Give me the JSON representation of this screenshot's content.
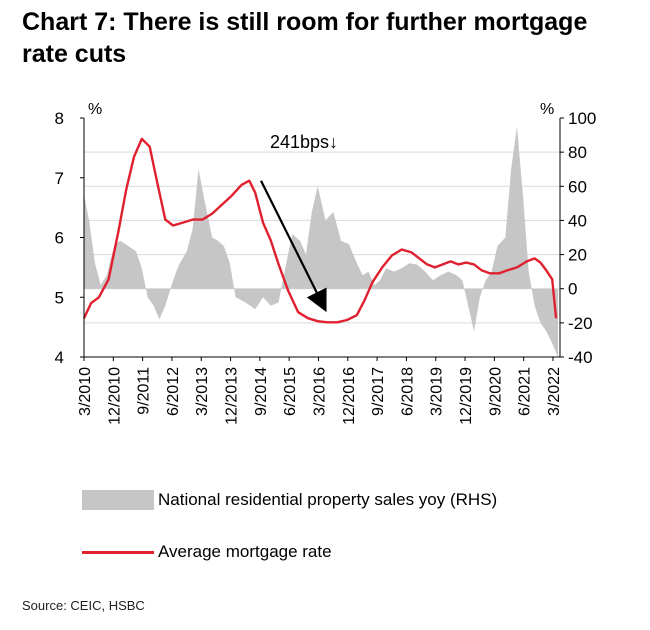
{
  "title": "Chart 7: There is still room for further mortgage rate cuts",
  "source": "Source: CEIC, HSBC",
  "chart_data": {
    "type": "line",
    "x_tick_labels": [
      "3/2010",
      "12/2010",
      "9/2011",
      "6/2012",
      "3/2013",
      "12/2013",
      "9/2014",
      "6/2015",
      "3/2016",
      "12/2016",
      "9/2017",
      "6/2018",
      "3/2019",
      "12/2019",
      "9/2020",
      "6/2021",
      "3/2022"
    ],
    "left_axis": {
      "unit_label": "%",
      "ylim": [
        4,
        8
      ],
      "ticks": [
        "4",
        "5",
        "6",
        "7",
        "8"
      ]
    },
    "right_axis": {
      "unit_label": "%",
      "ylim": [
        -40,
        100
      ],
      "ticks": [
        "-40",
        "-20",
        "0",
        "20",
        "40",
        "60",
        "80",
        "100"
      ]
    },
    "annotation": {
      "text": "241bps↓",
      "arrow_from_date": 2014.7,
      "arrow_from_value": 6.95,
      "arrow_to_date": 2016.3,
      "arrow_to_value": 4.85
    },
    "grid": true,
    "series": [
      {
        "name": "National residential property sales yoy (RHS)",
        "kind": "area",
        "axis": "right",
        "color": "#c6c6c6",
        "points": [
          [
            2010.17,
            55
          ],
          [
            2010.3,
            40
          ],
          [
            2010.45,
            15
          ],
          [
            2010.6,
            2
          ],
          [
            2010.75,
            8
          ],
          [
            2010.95,
            26
          ],
          [
            2011.1,
            28
          ],
          [
            2011.3,
            25
          ],
          [
            2011.5,
            22
          ],
          [
            2011.65,
            12
          ],
          [
            2011.8,
            -5
          ],
          [
            2011.95,
            -10
          ],
          [
            2012.1,
            -18
          ],
          [
            2012.25,
            -10
          ],
          [
            2012.45,
            5
          ],
          [
            2012.6,
            14
          ],
          [
            2012.8,
            22
          ],
          [
            2012.95,
            35
          ],
          [
            2013.1,
            70
          ],
          [
            2013.25,
            52
          ],
          [
            2013.45,
            30
          ],
          [
            2013.6,
            28
          ],
          [
            2013.75,
            25
          ],
          [
            2013.9,
            15
          ],
          [
            2014.05,
            -5
          ],
          [
            2014.3,
            -8
          ],
          [
            2014.55,
            -12
          ],
          [
            2014.75,
            -5
          ],
          [
            2014.95,
            -10
          ],
          [
            2015.15,
            -8
          ],
          [
            2015.3,
            10
          ],
          [
            2015.5,
            32
          ],
          [
            2015.7,
            28
          ],
          [
            2015.85,
            20
          ],
          [
            2016.0,
            45
          ],
          [
            2016.15,
            60
          ],
          [
            2016.35,
            40
          ],
          [
            2016.55,
            45
          ],
          [
            2016.75,
            28
          ],
          [
            2016.95,
            26
          ],
          [
            2017.15,
            15
          ],
          [
            2017.3,
            8
          ],
          [
            2017.45,
            10
          ],
          [
            2017.6,
            2
          ],
          [
            2017.75,
            5
          ],
          [
            2017.9,
            12
          ],
          [
            2018.1,
            10
          ],
          [
            2018.3,
            12
          ],
          [
            2018.5,
            15
          ],
          [
            2018.7,
            14
          ],
          [
            2018.9,
            10
          ],
          [
            2019.1,
            5
          ],
          [
            2019.3,
            8
          ],
          [
            2019.5,
            10
          ],
          [
            2019.7,
            8
          ],
          [
            2019.85,
            5
          ],
          [
            2020.0,
            -10
          ],
          [
            2020.15,
            -25
          ],
          [
            2020.3,
            -5
          ],
          [
            2020.45,
            5
          ],
          [
            2020.6,
            10
          ],
          [
            2020.75,
            25
          ],
          [
            2020.95,
            30
          ],
          [
            2021.1,
            70
          ],
          [
            2021.25,
            95
          ],
          [
            2021.4,
            55
          ],
          [
            2021.55,
            10
          ],
          [
            2021.7,
            -10
          ],
          [
            2021.85,
            -20
          ],
          [
            2022.0,
            -25
          ],
          [
            2022.15,
            -32
          ],
          [
            2022.3,
            -40
          ]
        ]
      },
      {
        "name": "Average mortgage rate",
        "kind": "line",
        "axis": "left",
        "color": "#e0202e",
        "points": [
          [
            2010.17,
            4.65
          ],
          [
            2010.35,
            4.9
          ],
          [
            2010.55,
            5.0
          ],
          [
            2010.8,
            5.3
          ],
          [
            2011.05,
            6.1
          ],
          [
            2011.25,
            6.8
          ],
          [
            2011.45,
            7.35
          ],
          [
            2011.65,
            7.65
          ],
          [
            2011.85,
            7.52
          ],
          [
            2012.05,
            6.9
          ],
          [
            2012.25,
            6.3
          ],
          [
            2012.45,
            6.2
          ],
          [
            2012.7,
            6.25
          ],
          [
            2012.95,
            6.3
          ],
          [
            2013.2,
            6.3
          ],
          [
            2013.45,
            6.4
          ],
          [
            2013.7,
            6.55
          ],
          [
            2013.95,
            6.7
          ],
          [
            2014.2,
            6.88
          ],
          [
            2014.4,
            6.95
          ],
          [
            2014.55,
            6.75
          ],
          [
            2014.75,
            6.25
          ],
          [
            2014.95,
            5.95
          ],
          [
            2015.15,
            5.55
          ],
          [
            2015.4,
            5.1
          ],
          [
            2015.65,
            4.75
          ],
          [
            2015.9,
            4.65
          ],
          [
            2016.15,
            4.6
          ],
          [
            2016.4,
            4.58
          ],
          [
            2016.65,
            4.58
          ],
          [
            2016.9,
            4.62
          ],
          [
            2017.15,
            4.7
          ],
          [
            2017.35,
            4.95
          ],
          [
            2017.55,
            5.25
          ],
          [
            2017.8,
            5.5
          ],
          [
            2018.05,
            5.7
          ],
          [
            2018.3,
            5.8
          ],
          [
            2018.55,
            5.75
          ],
          [
            2018.75,
            5.65
          ],
          [
            2018.95,
            5.55
          ],
          [
            2019.15,
            5.5
          ],
          [
            2019.35,
            5.55
          ],
          [
            2019.55,
            5.6
          ],
          [
            2019.75,
            5.55
          ],
          [
            2019.95,
            5.58
          ],
          [
            2020.15,
            5.55
          ],
          [
            2020.35,
            5.45
          ],
          [
            2020.55,
            5.4
          ],
          [
            2020.8,
            5.4
          ],
          [
            2021.0,
            5.45
          ],
          [
            2021.25,
            5.5
          ],
          [
            2021.5,
            5.6
          ],
          [
            2021.7,
            5.65
          ],
          [
            2021.85,
            5.58
          ],
          [
            2022.0,
            5.45
          ],
          [
            2022.15,
            5.3
          ],
          [
            2022.25,
            4.65
          ]
        ]
      }
    ]
  }
}
